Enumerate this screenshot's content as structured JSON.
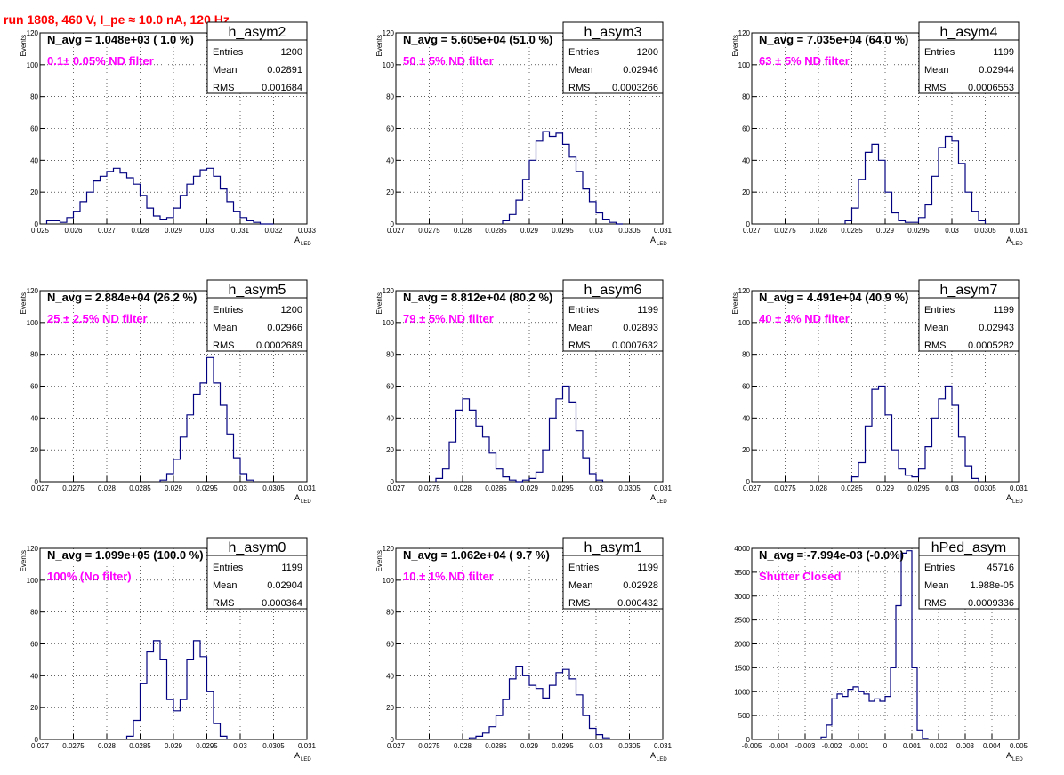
{
  "header": {
    "run_title": "run 1808,   460 V, I_pe ≈ 10.0 nA, 120 Hz"
  },
  "style": {
    "histogram_color": "#000080",
    "label_color": "#ff00ff",
    "title_color": "#ff0000",
    "axis_color": "#000000"
  },
  "chart_data": [
    {
      "type": "histogram",
      "name": "h_asym2",
      "stats": {
        "entries_label": "Entries",
        "entries": "1200",
        "mean_label": "Mean",
        "mean": "0.02891",
        "rms_label": "RMS",
        "rms": "0.001684"
      },
      "navg_text": "N_avg = 1.048e+03 ( 1.0 %)",
      "filter_text": "0.1± 0.05% ND filter",
      "xlabel": "A",
      "xlabel_sub": "LED",
      "ylabel": "Events",
      "xlim": [
        0.025,
        0.033
      ],
      "ylim": [
        0,
        120
      ],
      "xticks": [
        "0.025",
        "0.026",
        "0.027",
        "0.028",
        "0.029",
        "0.03",
        "0.031",
        "0.032",
        "0.033"
      ],
      "xtick_values": [
        0.025,
        0.026,
        0.027,
        0.028,
        0.029,
        0.03,
        0.031,
        0.032,
        0.033
      ],
      "yticks": [
        0,
        20,
        40,
        60,
        80,
        100,
        120
      ],
      "x": [
        0.0253,
        0.0255,
        0.0257,
        0.0259,
        0.0261,
        0.0263,
        0.0265,
        0.0267,
        0.0269,
        0.0271,
        0.0273,
        0.0275,
        0.0277,
        0.0279,
        0.0281,
        0.0283,
        0.0285,
        0.0287,
        0.0289,
        0.0291,
        0.0293,
        0.0295,
        0.0297,
        0.0299,
        0.0301,
        0.0303,
        0.0305,
        0.0307,
        0.0309,
        0.0311,
        0.0313,
        0.0315,
        0.0317,
        0.0319
      ],
      "values": [
        2,
        2,
        1,
        4,
        8,
        14,
        20,
        27,
        30,
        33,
        35,
        32,
        29,
        25,
        18,
        10,
        5,
        3,
        4,
        10,
        18,
        25,
        30,
        34,
        35,
        30,
        22,
        14,
        8,
        4,
        2,
        1,
        0,
        0
      ]
    },
    {
      "type": "histogram",
      "name": "h_asym3",
      "stats": {
        "entries_label": "Entries",
        "entries": "1200",
        "mean_label": "Mean",
        "mean": "0.02946",
        "rms_label": "RMS",
        "rms": "0.0003266"
      },
      "navg_text": "N_avg = 5.605e+04 (51.0 %)",
      "filter_text": "50 ± 5% ND filter",
      "xlabel": "A",
      "xlabel_sub": "LED",
      "ylabel": "Events",
      "xlim": [
        0.027,
        0.031
      ],
      "ylim": [
        0,
        120
      ],
      "xticks": [
        "0.027",
        "0.0275",
        "0.028",
        "0.0285",
        "0.029",
        "0.0295",
        "0.03",
        "0.0305",
        "0.031"
      ],
      "xtick_values": [
        0.027,
        0.0275,
        0.028,
        0.0285,
        0.029,
        0.0295,
        0.03,
        0.0305,
        0.031
      ],
      "yticks": [
        0,
        20,
        40,
        60,
        80,
        100,
        120
      ],
      "x": [
        0.02865,
        0.02875,
        0.02885,
        0.02895,
        0.02905,
        0.02915,
        0.02925,
        0.02935,
        0.02945,
        0.02955,
        0.02965,
        0.02975,
        0.02985,
        0.02995,
        0.03005,
        0.03015,
        0.03025,
        0.03035
      ],
      "values": [
        2,
        6,
        15,
        28,
        40,
        52,
        58,
        55,
        57,
        50,
        42,
        33,
        22,
        14,
        7,
        3,
        1,
        0
      ]
    },
    {
      "type": "histogram",
      "name": "h_asym4",
      "stats": {
        "entries_label": "Entries",
        "entries": "1199",
        "mean_label": "Mean",
        "mean": "0.02944",
        "rms_label": "RMS",
        "rms": "0.0006553"
      },
      "navg_text": "N_avg = 7.035e+04 (64.0 %)",
      "filter_text": "63 ± 5% ND filter",
      "xlabel": "A",
      "xlabel_sub": "LED",
      "ylabel": "Events",
      "xlim": [
        0.027,
        0.031
      ],
      "ylim": [
        0,
        120
      ],
      "xticks": [
        "0.027",
        "0.0275",
        "0.028",
        "0.0285",
        "0.029",
        "0.0295",
        "0.03",
        "0.0305",
        "0.031"
      ],
      "xtick_values": [
        0.027,
        0.0275,
        0.028,
        0.0285,
        0.029,
        0.0295,
        0.03,
        0.0305,
        0.031
      ],
      "yticks": [
        0,
        20,
        40,
        60,
        80,
        100,
        120
      ],
      "x": [
        0.02845,
        0.02855,
        0.02865,
        0.02875,
        0.02885,
        0.02895,
        0.02905,
        0.02915,
        0.02925,
        0.02935,
        0.02945,
        0.02955,
        0.02965,
        0.02975,
        0.02985,
        0.02995,
        0.03005,
        0.03015,
        0.03025,
        0.03035,
        0.03045
      ],
      "values": [
        2,
        10,
        28,
        45,
        50,
        40,
        20,
        7,
        2,
        1,
        1,
        4,
        12,
        30,
        48,
        55,
        52,
        38,
        20,
        8,
        2
      ]
    },
    {
      "type": "histogram",
      "name": "h_asym5",
      "stats": {
        "entries_label": "Entries",
        "entries": "1200",
        "mean_label": "Mean",
        "mean": "0.02966",
        "rms_label": "RMS",
        "rms": "0.0002689"
      },
      "navg_text": "N_avg = 2.884e+04 (26.2 %)",
      "filter_text": "25 ± 2.5% ND filter",
      "xlabel": "A",
      "xlabel_sub": "LED",
      "ylabel": "Events",
      "xlim": [
        0.027,
        0.031
      ],
      "ylim": [
        0,
        120
      ],
      "xticks": [
        "0.027",
        "0.0275",
        "0.028",
        "0.0285",
        "0.029",
        "0.0295",
        "0.03",
        "0.0305",
        "0.031"
      ],
      "xtick_values": [
        0.027,
        0.0275,
        0.028,
        0.0285,
        0.029,
        0.0295,
        0.03,
        0.0305,
        0.031
      ],
      "yticks": [
        0,
        20,
        40,
        60,
        80,
        100,
        120
      ],
      "x": [
        0.02885,
        0.02895,
        0.02905,
        0.02915,
        0.02925,
        0.02935,
        0.02945,
        0.02955,
        0.02965,
        0.02975,
        0.02985,
        0.02995,
        0.03005,
        0.03015
      ],
      "values": [
        1,
        5,
        14,
        28,
        42,
        55,
        62,
        78,
        62,
        48,
        30,
        15,
        5,
        1
      ]
    },
    {
      "type": "histogram",
      "name": "h_asym6",
      "stats": {
        "entries_label": "Entries",
        "entries": "1199",
        "mean_label": "Mean",
        "mean": "0.02893",
        "rms_label": "RMS",
        "rms": "0.0007632"
      },
      "navg_text": "N_avg = 8.812e+04 (80.2 %)",
      "filter_text": "79 ± 5% ND filter",
      "xlabel": "A",
      "xlabel_sub": "LED",
      "ylabel": "Events",
      "xlim": [
        0.027,
        0.031
      ],
      "ylim": [
        0,
        120
      ],
      "xticks": [
        "0.027",
        "0.0275",
        "0.028",
        "0.0285",
        "0.029",
        "0.0295",
        "0.03",
        "0.0305",
        "0.031"
      ],
      "xtick_values": [
        0.027,
        0.0275,
        0.028,
        0.0285,
        0.029,
        0.0295,
        0.03,
        0.0305,
        0.031
      ],
      "yticks": [
        0,
        20,
        40,
        60,
        80,
        100,
        120
      ],
      "x": [
        0.02765,
        0.02775,
        0.02785,
        0.02795,
        0.02805,
        0.02815,
        0.02825,
        0.02835,
        0.02845,
        0.02855,
        0.02865,
        0.02875,
        0.02885,
        0.02895,
        0.02905,
        0.02915,
        0.02925,
        0.02935,
        0.02945,
        0.02955,
        0.02965,
        0.02975,
        0.02985,
        0.02995,
        0.03005
      ],
      "values": [
        2,
        8,
        25,
        45,
        52,
        45,
        35,
        28,
        18,
        8,
        3,
        1,
        0,
        1,
        2,
        6,
        20,
        40,
        52,
        60,
        50,
        32,
        15,
        5,
        1
      ]
    },
    {
      "type": "histogram",
      "name": "h_asym7",
      "stats": {
        "entries_label": "Entries",
        "entries": "1199",
        "mean_label": "Mean",
        "mean": "0.02943",
        "rms_label": "RMS",
        "rms": "0.0005282"
      },
      "navg_text": "N_avg = 4.491e+04 (40.9 %)",
      "filter_text": "40 ± 4% ND filter",
      "xlabel": "A",
      "xlabel_sub": "LED",
      "ylabel": "Events",
      "xlim": [
        0.027,
        0.031
      ],
      "ylim": [
        0,
        120
      ],
      "xticks": [
        "0.027",
        "0.0275",
        "0.028",
        "0.0285",
        "0.029",
        "0.0295",
        "0.03",
        "0.0305",
        "0.031"
      ],
      "xtick_values": [
        0.027,
        0.0275,
        0.028,
        0.0285,
        0.029,
        0.0295,
        0.03,
        0.0305,
        0.031
      ],
      "yticks": [
        0,
        20,
        40,
        60,
        80,
        100,
        120
      ],
      "x": [
        0.02855,
        0.02865,
        0.02875,
        0.02885,
        0.02895,
        0.02905,
        0.02915,
        0.02925,
        0.02935,
        0.02945,
        0.02955,
        0.02965,
        0.02975,
        0.02985,
        0.02995,
        0.03005,
        0.03015,
        0.03025,
        0.03035
      ],
      "values": [
        3,
        12,
        35,
        58,
        60,
        42,
        20,
        8,
        4,
        3,
        8,
        22,
        40,
        52,
        60,
        48,
        28,
        10,
        2
      ]
    },
    {
      "type": "histogram",
      "name": "h_asym0",
      "stats": {
        "entries_label": "Entries",
        "entries": "1199",
        "mean_label": "Mean",
        "mean": "0.02904",
        "rms_label": "RMS",
        "rms": "0.000364"
      },
      "navg_text": "N_avg = 1.099e+05 (100.0 %)",
      "filter_text": "100% (No filter)",
      "xlabel": "A",
      "xlabel_sub": "LED",
      "ylabel": "Events",
      "xlim": [
        0.027,
        0.031
      ],
      "ylim": [
        0,
        120
      ],
      "xticks": [
        "0.027",
        "0.0275",
        "0.028",
        "0.0285",
        "0.029",
        "0.0295",
        "0.03",
        "0.0305",
        "0.031"
      ],
      "xtick_values": [
        0.027,
        0.0275,
        0.028,
        0.0285,
        0.029,
        0.0295,
        0.03,
        0.0305,
        0.031
      ],
      "yticks": [
        0,
        20,
        40,
        60,
        80,
        100,
        120
      ],
      "x": [
        0.02835,
        0.02845,
        0.02855,
        0.02865,
        0.02875,
        0.02885,
        0.02895,
        0.02905,
        0.02915,
        0.02925,
        0.02935,
        0.02945,
        0.02955,
        0.02965,
        0.02975
      ],
      "values": [
        2,
        12,
        35,
        55,
        62,
        50,
        25,
        18,
        25,
        50,
        62,
        52,
        30,
        10,
        2
      ]
    },
    {
      "type": "histogram",
      "name": "h_asym1",
      "stats": {
        "entries_label": "Entries",
        "entries": "1199",
        "mean_label": "Mean",
        "mean": "0.02928",
        "rms_label": "RMS",
        "rms": "0.000432"
      },
      "navg_text": "N_avg = 1.062e+04 ( 9.7 %)",
      "filter_text": "10 ± 1% ND filter",
      "xlabel": "A",
      "xlabel_sub": "LED",
      "ylabel": "Events",
      "xlim": [
        0.027,
        0.031
      ],
      "ylim": [
        0,
        120
      ],
      "xticks": [
        "0.027",
        "0.0275",
        "0.028",
        "0.0285",
        "0.029",
        "0.0295",
        "0.03",
        "0.0305",
        "0.031"
      ],
      "xtick_values": [
        0.027,
        0.0275,
        0.028,
        0.0285,
        0.029,
        0.0295,
        0.03,
        0.0305,
        0.031
      ],
      "yticks": [
        0,
        20,
        40,
        60,
        80,
        100,
        120
      ],
      "x": [
        0.02815,
        0.02825,
        0.02835,
        0.02845,
        0.02855,
        0.02865,
        0.02875,
        0.02885,
        0.02895,
        0.02905,
        0.02915,
        0.02925,
        0.02935,
        0.02945,
        0.02955,
        0.02965,
        0.02975,
        0.02985,
        0.02995,
        0.03005,
        0.03015
      ],
      "values": [
        1,
        2,
        4,
        8,
        15,
        25,
        38,
        46,
        40,
        34,
        32,
        26,
        34,
        42,
        44,
        38,
        28,
        15,
        7,
        3,
        1
      ]
    },
    {
      "type": "histogram",
      "name": "hPed_asym",
      "stats": {
        "entries_label": "Entries",
        "entries": "45716",
        "mean_label": "Mean",
        "mean": "1.988e-05",
        "rms_label": "RMS",
        "rms": "0.0009336"
      },
      "navg_text": "N_avg = -7.994e-03 (-0.0%)",
      "filter_text": "Shutter Closed",
      "xlabel": "A",
      "xlabel_sub": "LED",
      "ylabel": "",
      "xlim": [
        -0.005,
        0.005
      ],
      "ylim": [
        0,
        4000
      ],
      "xticks": [
        "-0.005",
        "-0.004",
        "-0.003",
        "-0.002",
        "-0.001",
        "0",
        "0.001",
        "0.002",
        "0.003",
        "0.004",
        "0.005"
      ],
      "xtick_values": [
        -0.005,
        -0.004,
        -0.003,
        -0.002,
        -0.001,
        0,
        0.001,
        0.002,
        0.003,
        0.004,
        0.005
      ],
      "yticks": [
        0,
        500,
        1000,
        1500,
        2000,
        2500,
        3000,
        3500,
        4000
      ],
      "x": [
        -0.0023,
        -0.0021,
        -0.0019,
        -0.0017,
        -0.0015,
        -0.0013,
        -0.0011,
        -0.0009,
        -0.0007,
        -0.0005,
        -0.0003,
        -0.0001,
        0.0001,
        0.0003,
        0.0005,
        0.0007,
        0.0009,
        0.0011,
        0.0013,
        0.0015
      ],
      "values": [
        50,
        300,
        850,
        950,
        900,
        1050,
        1100,
        1000,
        950,
        800,
        850,
        800,
        900,
        1500,
        2800,
        3900,
        3950,
        1500,
        200,
        20
      ]
    }
  ]
}
